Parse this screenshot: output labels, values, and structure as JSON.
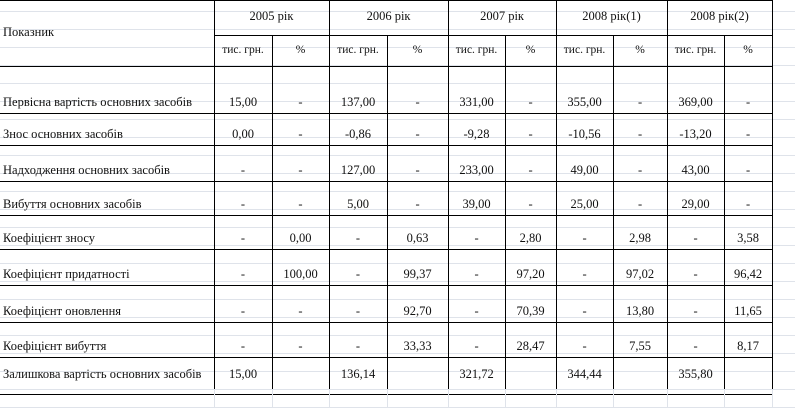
{
  "header": {
    "indicator": "Показник",
    "years": [
      "2005 рік",
      "2006 рік",
      "2007 рік",
      "2008 рік(1)",
      "2008 рік(2)"
    ],
    "sub_value": "тис. грн.",
    "sub_percent": "%"
  },
  "rows": [
    {
      "label": "Первісна вартість основних засобів",
      "cells": [
        "15,00",
        "-",
        "137,00",
        "-",
        "331,00",
        "-",
        "355,00",
        "-",
        "369,00",
        "-"
      ]
    },
    {
      "label": "Знос основних засобів",
      "cells": [
        "0,00",
        "-",
        "-0,86",
        "-",
        "-9,28",
        "-",
        "-10,56",
        "-",
        "-13,20",
        "-"
      ]
    },
    {
      "label": "Надходження основних засобів",
      "cells": [
        "-",
        "-",
        "127,00",
        "-",
        "233,00",
        "-",
        "49,00",
        "-",
        "43,00",
        "-"
      ]
    },
    {
      "label": "Вибуття основних засобів",
      "cells": [
        "-",
        "-",
        "5,00",
        "-",
        "39,00",
        "-",
        "25,00",
        "-",
        "29,00",
        "-"
      ]
    },
    {
      "label": "Коефіцієнт зносу",
      "cells": [
        "-",
        "0,00",
        "-",
        "0,63",
        "-",
        "2,80",
        "-",
        "2,98",
        "-",
        "3,58"
      ]
    },
    {
      "label": "Коефіцієнт придатності",
      "cells": [
        "-",
        "100,00",
        "-",
        "99,37",
        "-",
        "97,20",
        "-",
        "97,02",
        "-",
        "96,42"
      ]
    },
    {
      "label": "Коефіцієнт оновлення",
      "cells": [
        "-",
        "-",
        "-",
        "92,70",
        "-",
        "70,39",
        "-",
        "13,80",
        "-",
        "11,65"
      ]
    },
    {
      "label": "Коефіцієнт вибуття",
      "cells": [
        "-",
        "-",
        "-",
        "33,33",
        "-",
        "28,47",
        "-",
        "7,55",
        "-",
        "8,17"
      ]
    },
    {
      "label": "Залишкова вартість основних засобів",
      "cells": [
        "15,00",
        "",
        "136,14",
        "",
        "321,72",
        "",
        "344,44",
        "",
        "355,80",
        ""
      ]
    }
  ]
}
